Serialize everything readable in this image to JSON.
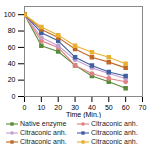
{
  "chart_data": {
    "type": "line",
    "x": [
      0,
      10,
      20,
      30,
      40,
      50,
      60
    ],
    "series": [
      {
        "name": "Native enzyme",
        "color": "#5a8a3a",
        "marker": "square",
        "values": [
          100,
          62,
          55,
          38,
          25,
          18,
          10
        ]
      },
      {
        "name": "Citraconic anh.",
        "color": "#e08080",
        "marker": "circle",
        "values": [
          100,
          68,
          60,
          38,
          28,
          22,
          18
        ]
      },
      {
        "name": "Citraconic anh.",
        "color": "#c0a0d0",
        "marker": "circle",
        "values": [
          100,
          72,
          62,
          45,
          35,
          28,
          22
        ]
      },
      {
        "name": "Citraconic anh.",
        "color": "#4060a0",
        "marker": "square",
        "values": [
          100,
          78,
          68,
          48,
          38,
          30,
          25
        ]
      },
      {
        "name": "Citraconic anh.",
        "color": "#c06828",
        "marker": "square",
        "values": [
          100,
          82,
          72,
          58,
          48,
          42,
          35
        ]
      },
      {
        "name": "Citraconic anh.",
        "color": "#e8b030",
        "marker": "square",
        "values": [
          100,
          85,
          75,
          62,
          54,
          48,
          40
        ]
      }
    ],
    "xlabel": "Time (Min.)",
    "xlim": [
      0,
      70
    ],
    "ylim": [
      0,
      110
    ],
    "xticks": [
      0,
      10,
      20,
      30,
      40,
      50,
      60,
      70
    ],
    "yticks": [
      0,
      20,
      40,
      60,
      80,
      100
    ],
    "legend": "bottom"
  }
}
